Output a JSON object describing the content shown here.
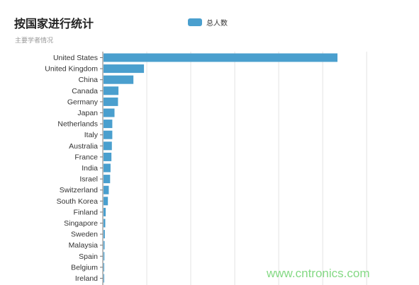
{
  "chart_data": {
    "type": "bar",
    "orientation": "horizontal",
    "title": "按国家进行统计",
    "subtitle": "主要学者情况",
    "categories": [
      "United States",
      "United Kingdom",
      "China",
      "Canada",
      "Germany",
      "Japan",
      "Netherlands",
      "Italy",
      "Australia",
      "France",
      "India",
      "Israel",
      "Switzerland",
      "South Korea",
      "Finland",
      "Singapore",
      "Sweden",
      "Malaysia",
      "Spain",
      "Belgium",
      "Ireland"
    ],
    "series": [
      {
        "name": "总人数",
        "color": "#4a9fce",
        "values": [
          2660,
          460,
          340,
          170,
          165,
          125,
          100,
          100,
          95,
          90,
          80,
          75,
          60,
          50,
          25,
          20,
          15,
          12,
          10,
          8,
          5
        ]
      }
    ],
    "xlim": [
      0,
      3000
    ],
    "grid": true,
    "legend_position": "top-center"
  },
  "watermark": "www.cntronics.com"
}
